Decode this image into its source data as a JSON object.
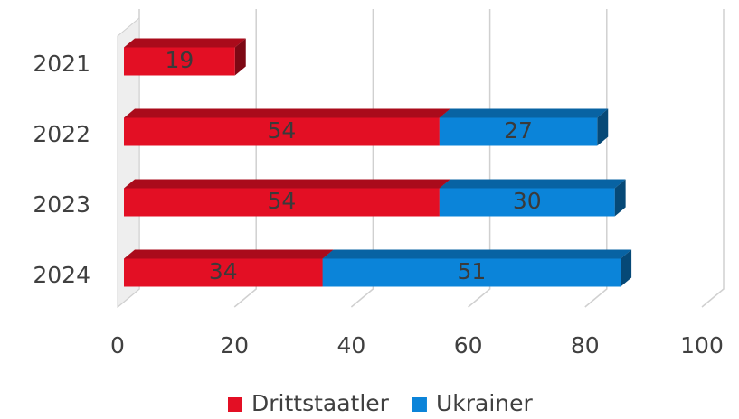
{
  "chart_data": {
    "type": "bar",
    "orientation": "horizontal",
    "stacked": true,
    "categories": [
      "2021",
      "2022",
      "2023",
      "2024"
    ],
    "series": [
      {
        "name": "Drittstaatler",
        "color": "#e30f24",
        "values": [
          19,
          54,
          54,
          34
        ]
      },
      {
        "name": "Ukrainer",
        "color": "#0b84d9",
        "values": [
          null,
          27,
          30,
          51
        ]
      }
    ],
    "xlim": [
      0,
      100
    ],
    "xticks": [
      0,
      20,
      40,
      60,
      80,
      100
    ],
    "grid": true,
    "legend": "bottom"
  }
}
